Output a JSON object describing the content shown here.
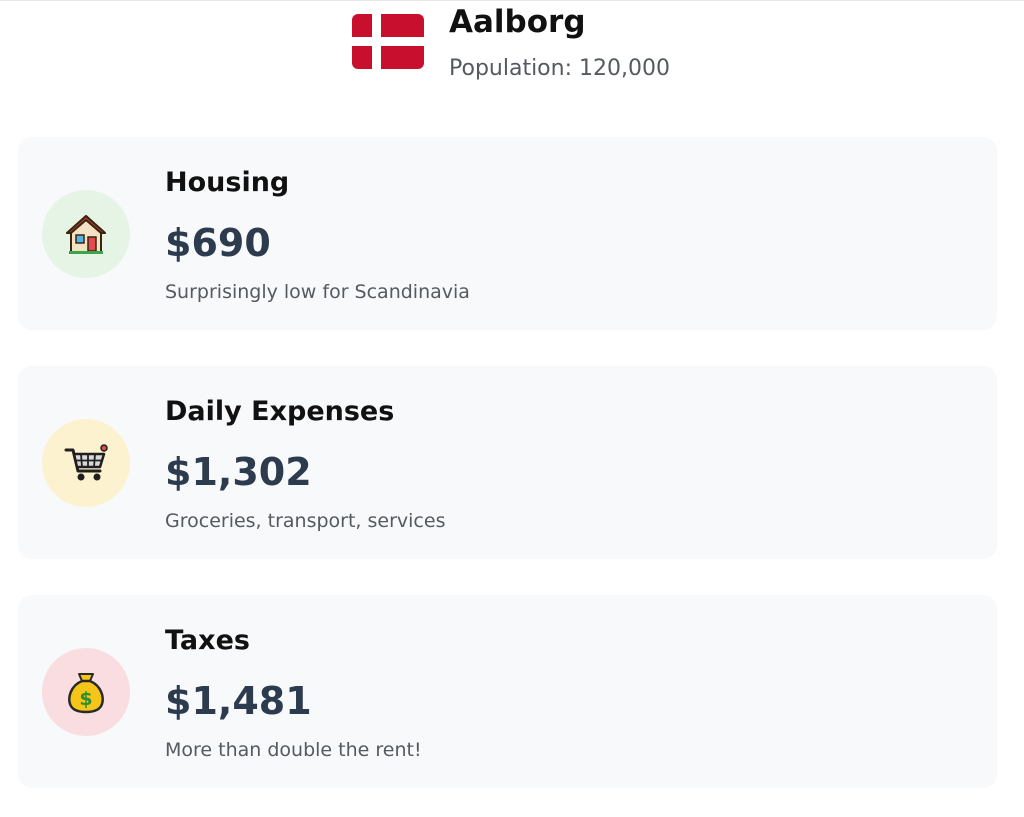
{
  "city": {
    "name": "Aalborg",
    "population": "Population: 120,000",
    "flag_icon": "denmark-flag-icon"
  },
  "cards": [
    {
      "title": "Housing",
      "amount": "$690",
      "description": "Surprisingly low for Scandinavia",
      "icon": "house-icon",
      "icon_bg": "#e6f4e6"
    },
    {
      "title": "Daily Expenses",
      "amount": "$1,302",
      "description": "Groceries, transport, services",
      "icon": "shopping-cart-icon",
      "icon_bg": "#fdf2cf"
    },
    {
      "title": "Taxes",
      "amount": "$1,481",
      "description": "More than double the rent!",
      "icon": "money-bag-icon",
      "icon_bg": "#f9dde0"
    }
  ],
  "colors": {
    "flag_red": "#c8102e",
    "card_bg": "#f7f9fa",
    "amount": "#2d3b4e"
  }
}
